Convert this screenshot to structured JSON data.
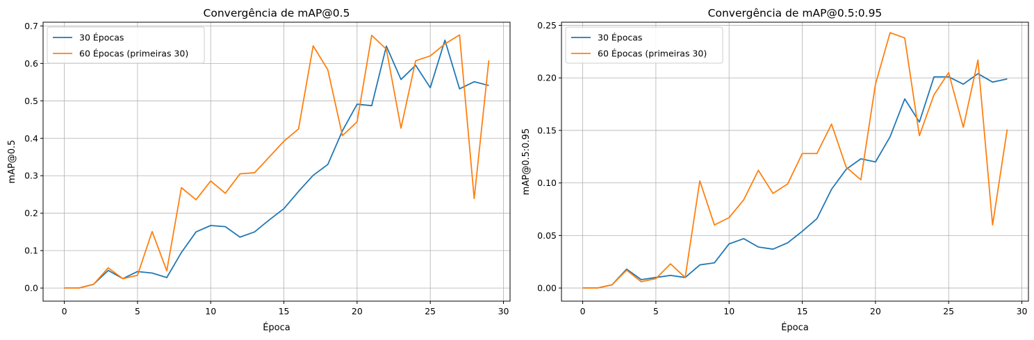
{
  "chart_data": [
    {
      "type": "line",
      "title": "Convergência de mAP@0.5",
      "xlabel": "Época",
      "ylabel": "mAP@0.5",
      "xlim": [
        -1.45,
        30.45
      ],
      "ylim": [
        -0.035,
        0.71
      ],
      "xticks": [
        0,
        5,
        10,
        15,
        20,
        25,
        30
      ],
      "xtick_labels": [
        "0",
        "5",
        "10",
        "15",
        "20",
        "25",
        "30"
      ],
      "yticks": [
        0.0,
        0.1,
        0.2,
        0.3,
        0.4,
        0.5,
        0.6,
        0.7
      ],
      "ytick_labels": [
        "0.0",
        "0.1",
        "0.2",
        "0.3",
        "0.4",
        "0.5",
        "0.6",
        "0.7"
      ],
      "grid": true,
      "legend_position": "top-left",
      "x": [
        0,
        1,
        2,
        3,
        4,
        5,
        6,
        7,
        8,
        9,
        10,
        11,
        12,
        13,
        14,
        15,
        16,
        17,
        18,
        19,
        20,
        21,
        22,
        23,
        24,
        25,
        26,
        27,
        28,
        29
      ],
      "series": [
        {
          "name": "30 Épocas",
          "color": "#1f77b4",
          "values": [
            0.0,
            0.0,
            0.01,
            0.047,
            0.025,
            0.044,
            0.04,
            0.028,
            0.095,
            0.15,
            0.167,
            0.164,
            0.136,
            0.15,
            0.182,
            0.212,
            0.258,
            0.301,
            0.33,
            0.42,
            0.491,
            0.487,
            0.646,
            0.557,
            0.595,
            0.535,
            0.662,
            0.532,
            0.551,
            0.541
          ]
        },
        {
          "name": "60 Épocas (primeiras 30)",
          "color": "#ff7f0e",
          "values": [
            0.0,
            0.0,
            0.01,
            0.054,
            0.025,
            0.034,
            0.151,
            0.046,
            0.268,
            0.236,
            0.286,
            0.253,
            0.305,
            0.308,
            0.35,
            0.392,
            0.425,
            0.647,
            0.583,
            0.407,
            0.444,
            0.675,
            0.638,
            0.427,
            0.607,
            0.62,
            0.652,
            0.676,
            0.239,
            0.608
          ]
        }
      ]
    },
    {
      "type": "line",
      "title": "Convergência de mAP@0.5:0.95",
      "xlabel": "Época",
      "ylabel": "mAP@0.5:0.95",
      "xlim": [
        -1.45,
        30.45
      ],
      "ylim": [
        -0.0125,
        0.253
      ],
      "xticks": [
        0,
        5,
        10,
        15,
        20,
        25,
        30
      ],
      "xtick_labels": [
        "0",
        "5",
        "10",
        "15",
        "20",
        "25",
        "30"
      ],
      "yticks": [
        0.0,
        0.05,
        0.1,
        0.15,
        0.2,
        0.25
      ],
      "ytick_labels": [
        "0.00",
        "0.05",
        "0.10",
        "0.15",
        "0.20",
        "0.25"
      ],
      "grid": true,
      "legend_position": "top-left",
      "x": [
        0,
        1,
        2,
        3,
        4,
        5,
        6,
        7,
        8,
        9,
        10,
        11,
        12,
        13,
        14,
        15,
        16,
        17,
        18,
        19,
        20,
        21,
        22,
        23,
        24,
        25,
        26,
        27,
        28,
        29
      ],
      "series": [
        {
          "name": "30 Épocas",
          "color": "#1f77b4",
          "values": [
            0.0,
            0.0,
            0.003,
            0.018,
            0.008,
            0.01,
            0.012,
            0.01,
            0.022,
            0.024,
            0.042,
            0.047,
            0.039,
            0.037,
            0.043,
            0.054,
            0.066,
            0.094,
            0.113,
            0.123,
            0.12,
            0.144,
            0.18,
            0.158,
            0.201,
            0.201,
            0.194,
            0.204,
            0.196,
            0.199
          ]
        },
        {
          "name": "60 Épocas (primeiras 30)",
          "color": "#ff7f0e",
          "values": [
            0.0,
            0.0,
            0.003,
            0.017,
            0.006,
            0.009,
            0.023,
            0.01,
            0.102,
            0.06,
            0.067,
            0.084,
            0.112,
            0.09,
            0.099,
            0.128,
            0.128,
            0.156,
            0.115,
            0.103,
            0.194,
            0.243,
            0.238,
            0.145,
            0.184,
            0.205,
            0.153,
            0.217,
            0.06,
            0.151
          ]
        }
      ]
    }
  ]
}
